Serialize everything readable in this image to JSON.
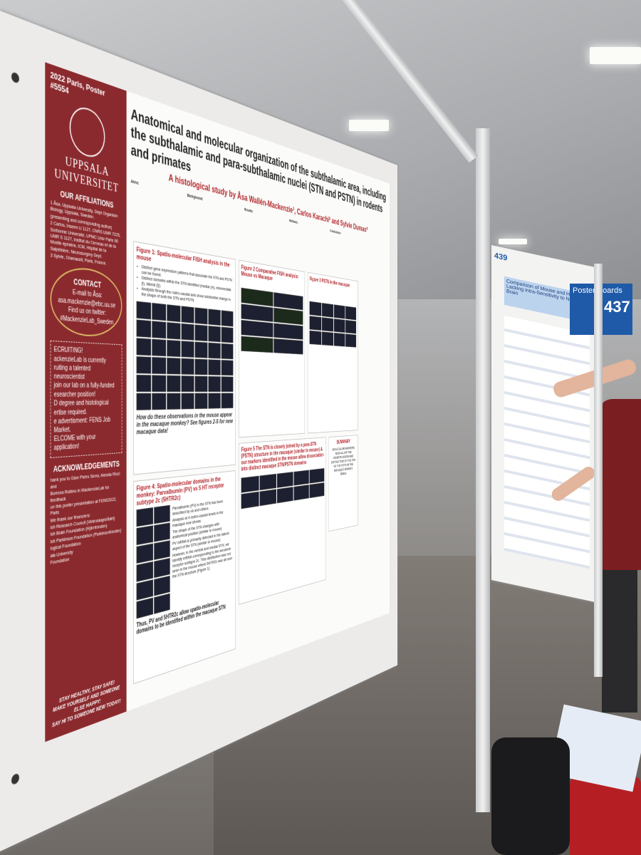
{
  "poster": {
    "sidebar": {
      "tag": "2022 Paris, Poster #5554",
      "university": "UPPSALA UNIVERSITET",
      "affiliations_heading": "OUR AFFILIATIONS",
      "affiliations": [
        "1 Åsa, Uppsala University, Dept Organism Biology, Uppsala, Sweden.",
        "(presenting and corresponding author)",
        "2 Carlos, Inserm U 1127, CNRS UMR 7225, Sorbonne Université, UPMC Univ Paris 06 UMR S 1127, Institut du Cerveau et de la Moelle épinière, ICM, Hôpital de la Salpêtrière, Neurosurgery Dept.",
        "3 Sylvie, Oramacell, Paris, France."
      ],
      "contact_heading": "CONTACT",
      "contact_lines": [
        "E-mail to Åsa:",
        "asa.mackenzie@ebc.uu.se",
        "Find us on twitter:",
        "#MackenzieLab_Sweden"
      ],
      "recruiting": [
        "ECRUITING!",
        "ackenzieLab is currently",
        "ruiting a talented neuroscientist",
        "join our lab on a fully-funded",
        "esearcher position!",
        "D degree and histological",
        "ertise required.",
        "e advertisment: FENS Job Market.",
        "ELCOME with your application!"
      ],
      "ack_heading": "ACKNOWLEDGEMENTS",
      "ack_lines": [
        "hank you to Gian Pietro Serra, Alessia Ricci and",
        "Bomora Rubino in MackenzieLab for feedback",
        "on this poster presentation at FENS2022, Paris",
        "We thank our financiers:",
        "ish Research Council (Vetenskapsrådet)",
        "ish Brain Foundation (Hjärnfonden)",
        "ish Parkinson Foundation (Parkinsonfonden)",
        "logical Foundation",
        "ala University",
        "Foundation"
      ],
      "footer": [
        "STAY HEALTHY, STAY SAFE!",
        "MAKE YOURSELF AND SOMEONE ELSE HAPPY:",
        "SAY HI TO SOMEONE NEW TODAY!"
      ]
    },
    "header": {
      "title": "Anatomical and molecular organization of the subthalamic area, including the subthalamic and para-subthalamic nuclei (STN and PSTN) in rodents and primates",
      "authors": "A histological study by Åsa Wallén-Mackenzie¹, Carlos Karachi² and Sylvie Dumas³"
    },
    "intro": [
      "Aims:",
      "Background:",
      "Results:",
      "Methods:",
      "Conclusions:"
    ],
    "figure1": {
      "title": "Figure 1: Spatio-molecular FISH analysis in the mouse",
      "bullets": [
        "Distinct gene expression patterns that associate the STN and PSTN can be found.",
        "Distinct domains within the STN identified (medial (m), intermediate (i), lateral (l)).",
        "Analysis through the rostro-caudal axis show substantial change in the shape of both the STN and PSTN."
      ],
      "question": "How do these observations in the mouse appear in the macaque monkey? See figures 2-5 for new macaque data!"
    },
    "figure4": {
      "title": "Figure 4: Spatio-molecular domains in the monkey: Parvalbumin (PV) vs 5 HT receptor subtype 2c (5HTR2c)",
      "text": [
        "Parvalbumin (PV) in the STN has been described by us and others.",
        "Analysis at 4 rostro-caudal levels in the macaque now shows:",
        "The shape of the STN changes with anatomical position (similar to mouse).",
        "PV mRNA is primarily detected in the lateral aspect of the STN (similar to mouse).",
        "However, in the ventral and medial STN, we identify mRNA corresponding to the serotonin receptor subtype 2c. This distribution was not seen in the mouse where 5HTR2c was all over the STN structure (Figure 1)."
      ],
      "conclusion": "Thus, PV and 5HTR2c allow spatio-molecular domains to be identified within the macaque STN"
    },
    "figure2": {
      "title": "Figure 2 Comparative FISH analysis: Mouse vs Macaque"
    },
    "figure3": {
      "title": "Figure 3 PSTN in the macaque"
    },
    "figure5": {
      "title": "Figure 5 The STN is closely joined by a para-STN (PSTN) structure in the macaque (similar to mouse) & our markers identified in the mouse allow dissociation into distinct macaque STN/PSTN domains"
    },
    "summary": {
      "heading": "SUMMARY",
      "text": "MOLECULAR MARKERS NOW ALLOW THE IDENTIFICATION AND DISTINCTION OF THE STN VS THE PSTN IN THE MACAQUE MONKEY BRAIN."
    }
  },
  "signage": {
    "board_number": "437",
    "board_label": "Poster Boards",
    "neighbor_number": "439",
    "neighbor_title": "Comparison of Mouse and Human Lacking Intra-Sensitivity to Noise Brain"
  }
}
